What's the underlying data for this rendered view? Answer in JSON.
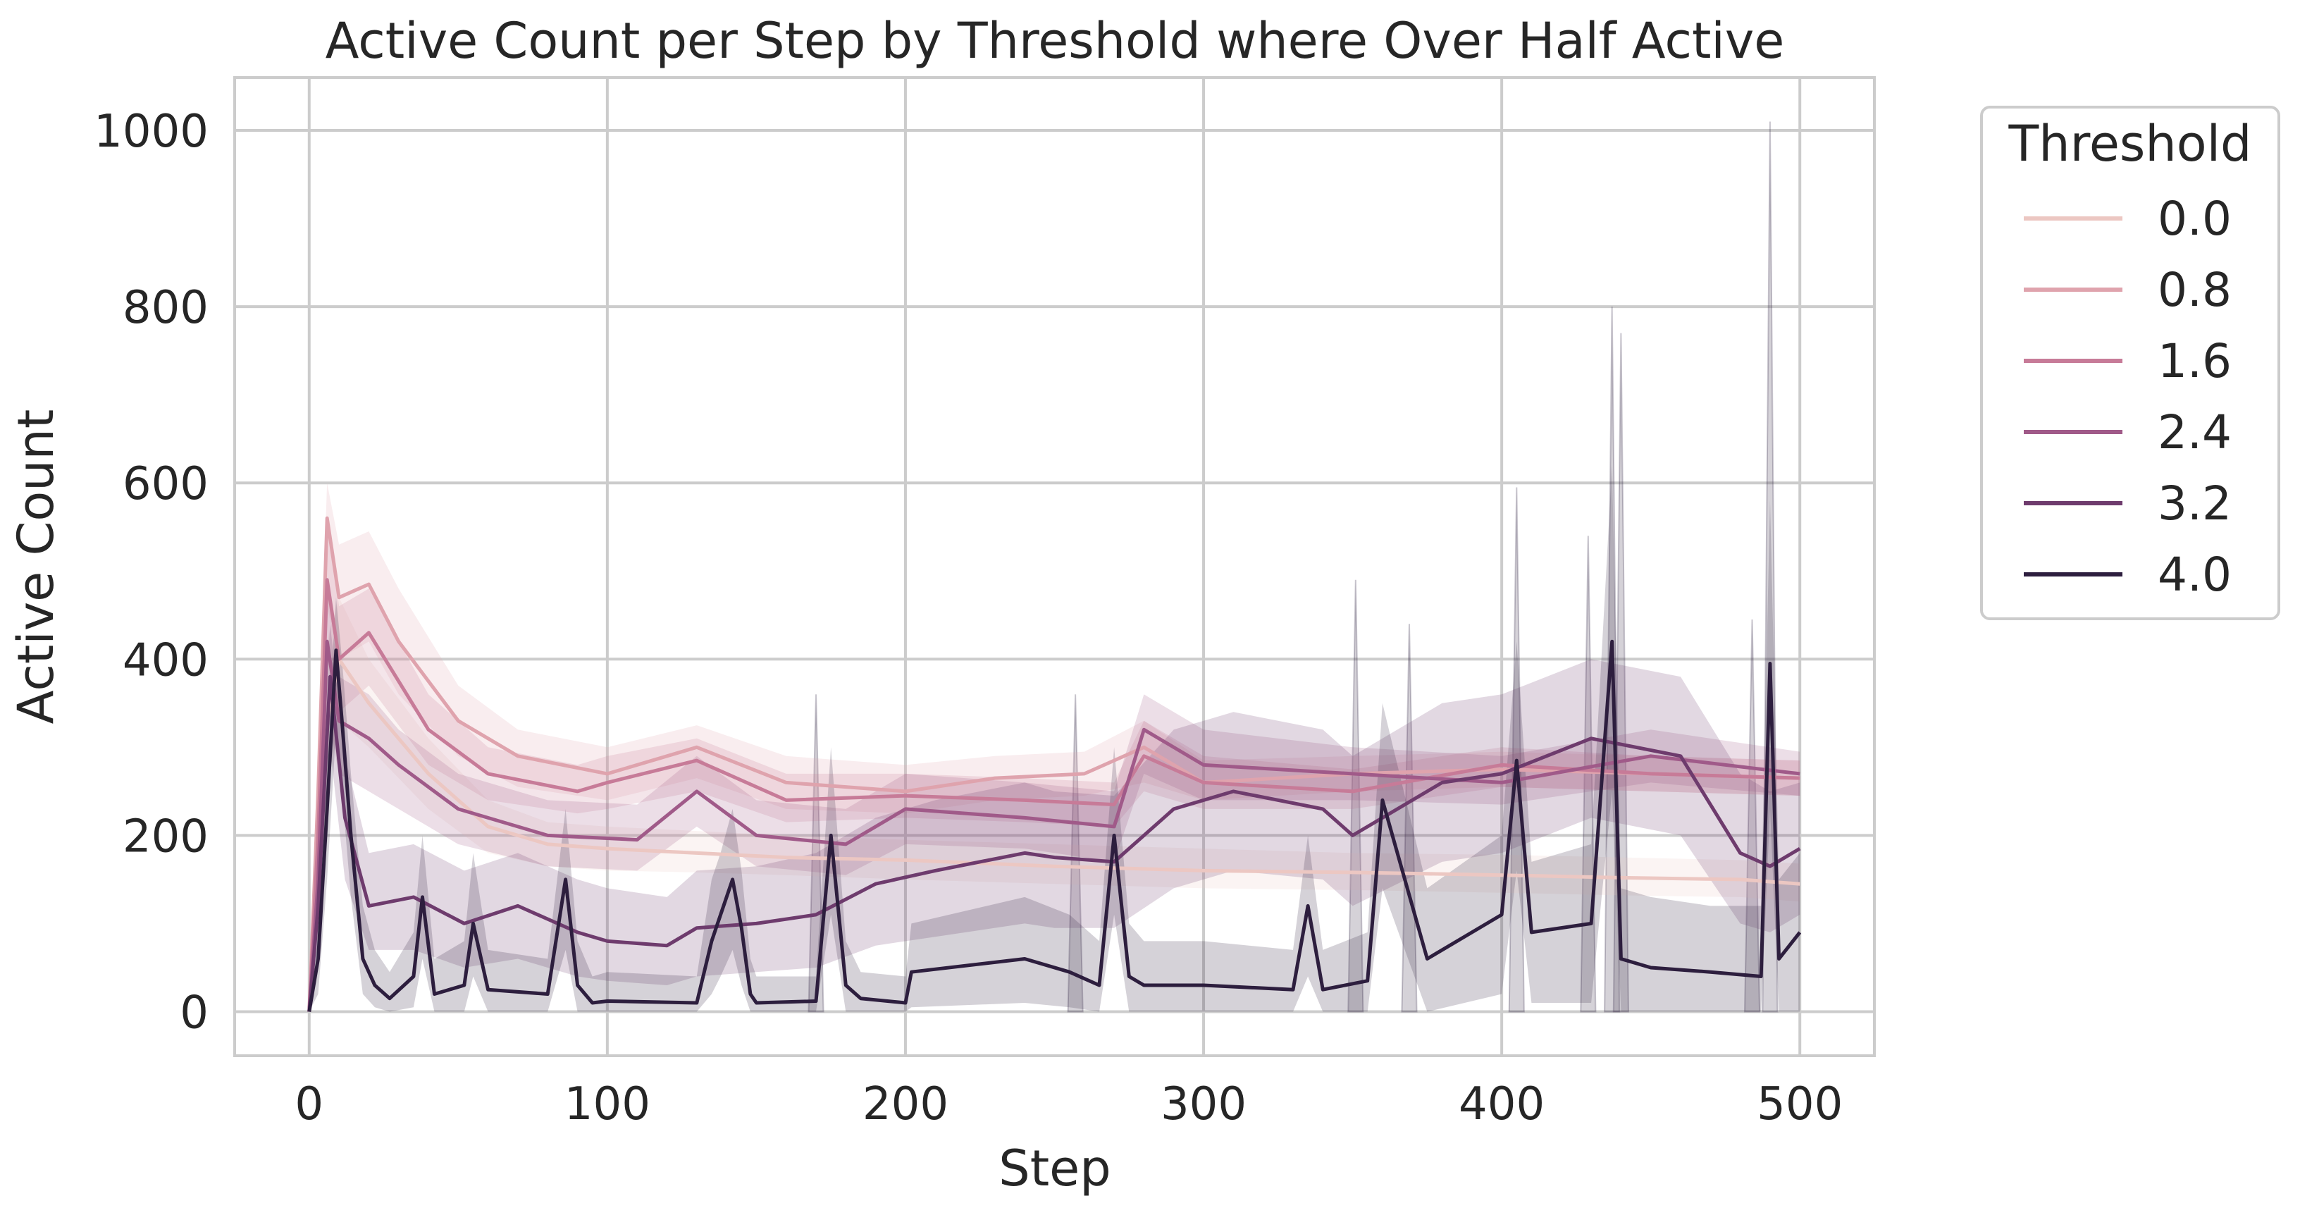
{
  "chart_data": {
    "type": "line",
    "title": "Active Count per Step by Threshold where Over Half Active",
    "xlabel": "Step",
    "ylabel": "Active Count",
    "xlim": [
      -25,
      525
    ],
    "ylim": [
      -50,
      1060
    ],
    "xticks": [
      0,
      100,
      200,
      300,
      400,
      500
    ],
    "yticks": [
      0,
      200,
      400,
      600,
      800,
      1000
    ],
    "grid": true,
    "legend": {
      "title": "Threshold",
      "placement": "outside-right"
    },
    "series": [
      {
        "name": "0.0",
        "color": "#ecc7c2",
        "x": [
          0,
          3,
          6,
          10,
          20,
          40,
          60,
          80,
          100,
          130,
          160,
          200,
          250,
          300,
          350,
          400,
          440,
          480,
          500
        ],
        "values": [
          0,
          150,
          330,
          400,
          350,
          270,
          210,
          190,
          185,
          180,
          175,
          172,
          165,
          160,
          158,
          155,
          152,
          150,
          145
        ],
        "band_lower": [
          0,
          100,
          250,
          330,
          300,
          230,
          180,
          165,
          160,
          158,
          155,
          150,
          145,
          140,
          138,
          135,
          132,
          130,
          125
        ],
        "band_upper": [
          0,
          220,
          420,
          470,
          400,
          310,
          240,
          215,
          210,
          205,
          200,
          195,
          190,
          185,
          180,
          178,
          175,
          172,
          168
        ]
      },
      {
        "name": "0.8",
        "color": "#dfa3ad",
        "x": [
          0,
          3,
          6,
          10,
          20,
          30,
          50,
          70,
          100,
          130,
          160,
          200,
          230,
          260,
          280,
          300,
          350,
          400,
          450,
          500
        ],
        "values": [
          0,
          250,
          560,
          470,
          485,
          420,
          330,
          290,
          270,
          300,
          260,
          250,
          265,
          270,
          300,
          260,
          270,
          275,
          270,
          265
        ],
        "band_lower": [
          0,
          180,
          460,
          400,
          420,
          360,
          290,
          255,
          240,
          265,
          230,
          225,
          240,
          245,
          260,
          240,
          250,
          255,
          250,
          245
        ],
        "band_upper": [
          0,
          320,
          600,
          530,
          545,
          480,
          370,
          320,
          300,
          325,
          290,
          280,
          290,
          295,
          330,
          285,
          290,
          295,
          290,
          285
        ]
      },
      {
        "name": "1.6",
        "color": "#c77b98",
        "x": [
          0,
          3,
          6,
          10,
          20,
          40,
          60,
          90,
          100,
          130,
          160,
          200,
          240,
          270,
          280,
          300,
          350,
          400,
          450,
          500
        ],
        "values": [
          0,
          200,
          490,
          400,
          430,
          320,
          270,
          250,
          260,
          285,
          240,
          245,
          240,
          235,
          290,
          260,
          250,
          280,
          270,
          265
        ],
        "band_lower": [
          0,
          150,
          400,
          340,
          370,
          280,
          240,
          225,
          230,
          250,
          215,
          220,
          215,
          210,
          250,
          230,
          230,
          255,
          250,
          245
        ],
        "band_upper": [
          0,
          260,
          560,
          460,
          480,
          360,
          300,
          280,
          290,
          310,
          270,
          270,
          265,
          260,
          330,
          290,
          275,
          300,
          290,
          285
        ]
      },
      {
        "name": "2.4",
        "color": "#a05a89",
        "x": [
          0,
          3,
          6,
          10,
          20,
          30,
          50,
          80,
          110,
          130,
          150,
          180,
          200,
          240,
          270,
          280,
          300,
          350,
          400,
          450,
          500
        ],
        "values": [
          0,
          150,
          420,
          330,
          310,
          280,
          230,
          200,
          195,
          250,
          200,
          190,
          230,
          220,
          210,
          320,
          280,
          270,
          260,
          290,
          270
        ],
        "band_lower": [
          0,
          100,
          340,
          270,
          250,
          230,
          190,
          165,
          160,
          210,
          165,
          155,
          190,
          185,
          170,
          270,
          240,
          240,
          235,
          260,
          245
        ],
        "band_upper": [
          0,
          200,
          480,
          380,
          360,
          320,
          270,
          240,
          235,
          290,
          240,
          230,
          270,
          260,
          250,
          360,
          320,
          300,
          290,
          320,
          295
        ]
      },
      {
        "name": "3.2",
        "color": "#6e3b6d",
        "x": [
          0,
          3,
          7,
          12,
          20,
          35,
          52,
          70,
          90,
          100,
          120,
          130,
          150,
          170,
          190,
          210,
          240,
          250,
          270,
          290,
          310,
          340,
          350,
          380,
          400,
          430,
          460,
          480,
          490,
          500
        ],
        "values": [
          0,
          120,
          380,
          220,
          120,
          130,
          100,
          120,
          90,
          80,
          75,
          95,
          100,
          110,
          145,
          160,
          180,
          175,
          170,
          230,
          250,
          230,
          200,
          260,
          270,
          310,
          290,
          180,
          165,
          185
        ],
        "band_lower": [
          0,
          80,
          300,
          150,
          70,
          70,
          50,
          60,
          40,
          35,
          30,
          40,
          45,
          50,
          75,
          85,
          100,
          95,
          95,
          140,
          160,
          150,
          120,
          170,
          180,
          220,
          200,
          100,
          90,
          110
        ],
        "band_upper": [
          0,
          160,
          440,
          290,
          180,
          190,
          160,
          180,
          150,
          140,
          130,
          160,
          165,
          180,
          220,
          240,
          260,
          250,
          245,
          320,
          340,
          320,
          290,
          350,
          360,
          400,
          380,
          270,
          250,
          260
        ]
      },
      {
        "name": "4.0",
        "color": "#2d1e3e",
        "x": [
          0,
          3,
          6,
          9,
          11,
          14,
          18,
          22,
          27,
          35,
          38,
          42,
          52,
          55,
          60,
          80,
          86,
          90,
          95,
          100,
          130,
          135,
          138,
          142,
          145,
          148,
          150,
          170,
          175,
          180,
          185,
          200,
          202,
          240,
          255,
          265,
          270,
          275,
          280,
          300,
          330,
          335,
          340,
          355,
          360,
          375,
          400,
          405,
          410,
          430,
          437,
          440,
          450,
          470,
          487,
          490,
          493,
          500
        ],
        "values": [
          0,
          60,
          230,
          410,
          330,
          200,
          60,
          30,
          15,
          40,
          130,
          20,
          30,
          100,
          25,
          20,
          150,
          30,
          10,
          12,
          10,
          80,
          110,
          150,
          95,
          20,
          10,
          12,
          200,
          30,
          15,
          10,
          45,
          60,
          45,
          30,
          200,
          40,
          30,
          30,
          25,
          120,
          25,
          35,
          240,
          60,
          110,
          285,
          90,
          100,
          420,
          60,
          50,
          45,
          40,
          395,
          60,
          90
        ],
        "band_lower": [
          0,
          20,
          150,
          320,
          250,
          130,
          20,
          5,
          0,
          5,
          60,
          0,
          0,
          40,
          0,
          0,
          70,
          0,
          0,
          0,
          0,
          20,
          40,
          70,
          30,
          0,
          0,
          0,
          110,
          0,
          0,
          0,
          5,
          10,
          5,
          0,
          110,
          0,
          0,
          0,
          0,
          40,
          0,
          0,
          140,
          0,
          20,
          160,
          10,
          10,
          250,
          0,
          0,
          0,
          0,
          230,
          0,
          0
        ],
        "band_upper": [
          0,
          100,
          300,
          470,
          400,
          270,
          120,
          70,
          45,
          90,
          200,
          60,
          80,
          180,
          70,
          60,
          230,
          80,
          40,
          45,
          40,
          150,
          180,
          230,
          160,
          60,
          40,
          40,
          300,
          80,
          45,
          40,
          100,
          130,
          110,
          80,
          300,
          100,
          80,
          80,
          70,
          200,
          70,
          90,
          350,
          140,
          200,
          420,
          170,
          190,
          620,
          140,
          130,
          120,
          120,
          580,
          150,
          180
        ]
      }
    ],
    "spikes": [
      {
        "x": 351,
        "y": 490
      },
      {
        "x": 369,
        "y": 440
      },
      {
        "x": 405,
        "y": 595
      },
      {
        "x": 429,
        "y": 540
      },
      {
        "x": 437,
        "y": 800
      },
      {
        "x": 440,
        "y": 770
      },
      {
        "x": 484,
        "y": 445
      },
      {
        "x": 490,
        "y": 1010
      },
      {
        "x": 170,
        "y": 360
      },
      {
        "x": 257,
        "y": 360
      }
    ]
  }
}
